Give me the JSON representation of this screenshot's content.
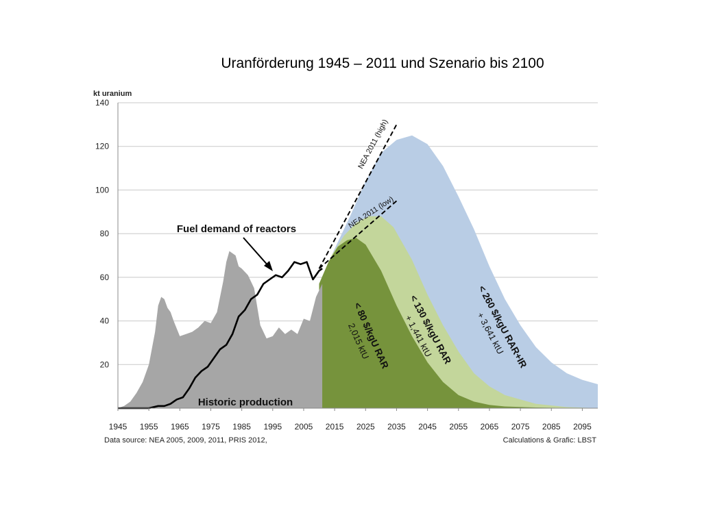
{
  "chart_data": {
    "type": "area",
    "title": "Uranförderung 1945 – 2011 und Szenario bis 2100",
    "ylabel": "kt uranium",
    "xlim": [
      1945,
      2100
    ],
    "ylim": [
      0,
      140
    ],
    "yticks": [
      20,
      40,
      60,
      80,
      100,
      120,
      140
    ],
    "xticks": [
      1945,
      1955,
      1965,
      1975,
      1985,
      1995,
      2005,
      2015,
      2025,
      2035,
      2045,
      2055,
      2065,
      2075,
      2085,
      2095
    ],
    "grid": true,
    "source_left": "Data source: NEA 2005, 2009, 2011, PRIS 2012,",
    "source_right": "Calculations & Grafic: LBST",
    "historic_production": {
      "label": "Historic production",
      "color": "#a6a6a6",
      "x": [
        1945,
        1947,
        1949,
        1951,
        1953,
        1955,
        1957,
        1958,
        1959,
        1960,
        1961,
        1962,
        1963,
        1965,
        1967,
        1969,
        1971,
        1973,
        1975,
        1977,
        1979,
        1980,
        1981,
        1983,
        1984,
        1985,
        1987,
        1989,
        1991,
        1993,
        1995,
        1997,
        1999,
        2001,
        2003,
        2005,
        2007,
        2009,
        2010,
        2011
      ],
      "y": [
        0,
        1,
        3,
        7,
        12,
        20,
        35,
        47,
        51,
        50,
        46,
        44,
        40,
        33,
        34,
        35,
        37,
        40,
        39,
        44,
        58,
        67,
        72,
        70,
        65,
        64,
        61,
        55,
        38,
        32,
        33,
        37,
        34,
        36,
        34,
        41,
        40,
        51,
        54,
        57
      ]
    },
    "fuel_demand": {
      "label": "Fuel demand of reactors",
      "color": "#000000",
      "x": [
        1945,
        1950,
        1955,
        1958,
        1960,
        1962,
        1964,
        1966,
        1968,
        1970,
        1972,
        1974,
        1976,
        1978,
        1980,
        1982,
        1984,
        1986,
        1988,
        1990,
        1992,
        1994,
        1996,
        1998,
        2000,
        2002,
        2004,
        2006,
        2008,
        2010,
        2011
      ],
      "y": [
        0,
        0,
        0,
        1,
        1,
        2,
        4,
        5,
        9,
        14,
        17,
        19,
        23,
        27,
        29,
        34,
        42,
        45,
        50,
        52,
        57,
        59,
        61,
        60,
        63,
        67,
        66,
        67,
        59,
        63,
        64
      ]
    },
    "scenarios": [
      {
        "name": "< 80 $/kgU RAR",
        "amount": "2,015 ktU",
        "color": "#76933c",
        "x": [
          2010,
          2013,
          2016,
          2019,
          2022,
          2025,
          2030,
          2035,
          2040,
          2045,
          2050,
          2055,
          2060,
          2065,
          2070,
          2080,
          2090,
          2100
        ],
        "y": [
          57,
          67,
          74,
          77,
          78,
          75,
          63,
          47,
          33,
          21,
          12,
          6,
          3,
          1.5,
          0.8,
          0.3,
          0.1,
          0
        ]
      },
      {
        "name": "< 130 $/kgU RAR",
        "amount": "+ 1,441 ktU",
        "color": "#c3d69b",
        "x": [
          2010,
          2014,
          2018,
          2022,
          2026,
          2030,
          2034,
          2040,
          2045,
          2050,
          2055,
          2060,
          2065,
          2070,
          2080,
          2090,
          2100
        ],
        "y": [
          57,
          70,
          79,
          85,
          88,
          88,
          83,
          68,
          52,
          38,
          26,
          16,
          10,
          6,
          2,
          0.5,
          0
        ]
      },
      {
        "name": "< 260 $/kgU RAR+IR",
        "amount": "+ 3,641 ktU",
        "color": "#b9cde5",
        "x": [
          2010,
          2015,
          2020,
          2025,
          2030,
          2035,
          2040,
          2045,
          2050,
          2055,
          2060,
          2065,
          2070,
          2075,
          2080,
          2085,
          2090,
          2095,
          2100
        ],
        "y": [
          57,
          73,
          88,
          104,
          117,
          123,
          125,
          121,
          111,
          97,
          82,
          65,
          50,
          38,
          28,
          21,
          16,
          13,
          11
        ]
      }
    ],
    "projections": [
      {
        "name": "NEA 2011 (high)",
        "x": [
          2010,
          2035
        ],
        "y": [
          64,
          130
        ]
      },
      {
        "name": "NEA 2011 (low)",
        "x": [
          2010,
          2035
        ],
        "y": [
          64,
          95
        ]
      }
    ]
  }
}
